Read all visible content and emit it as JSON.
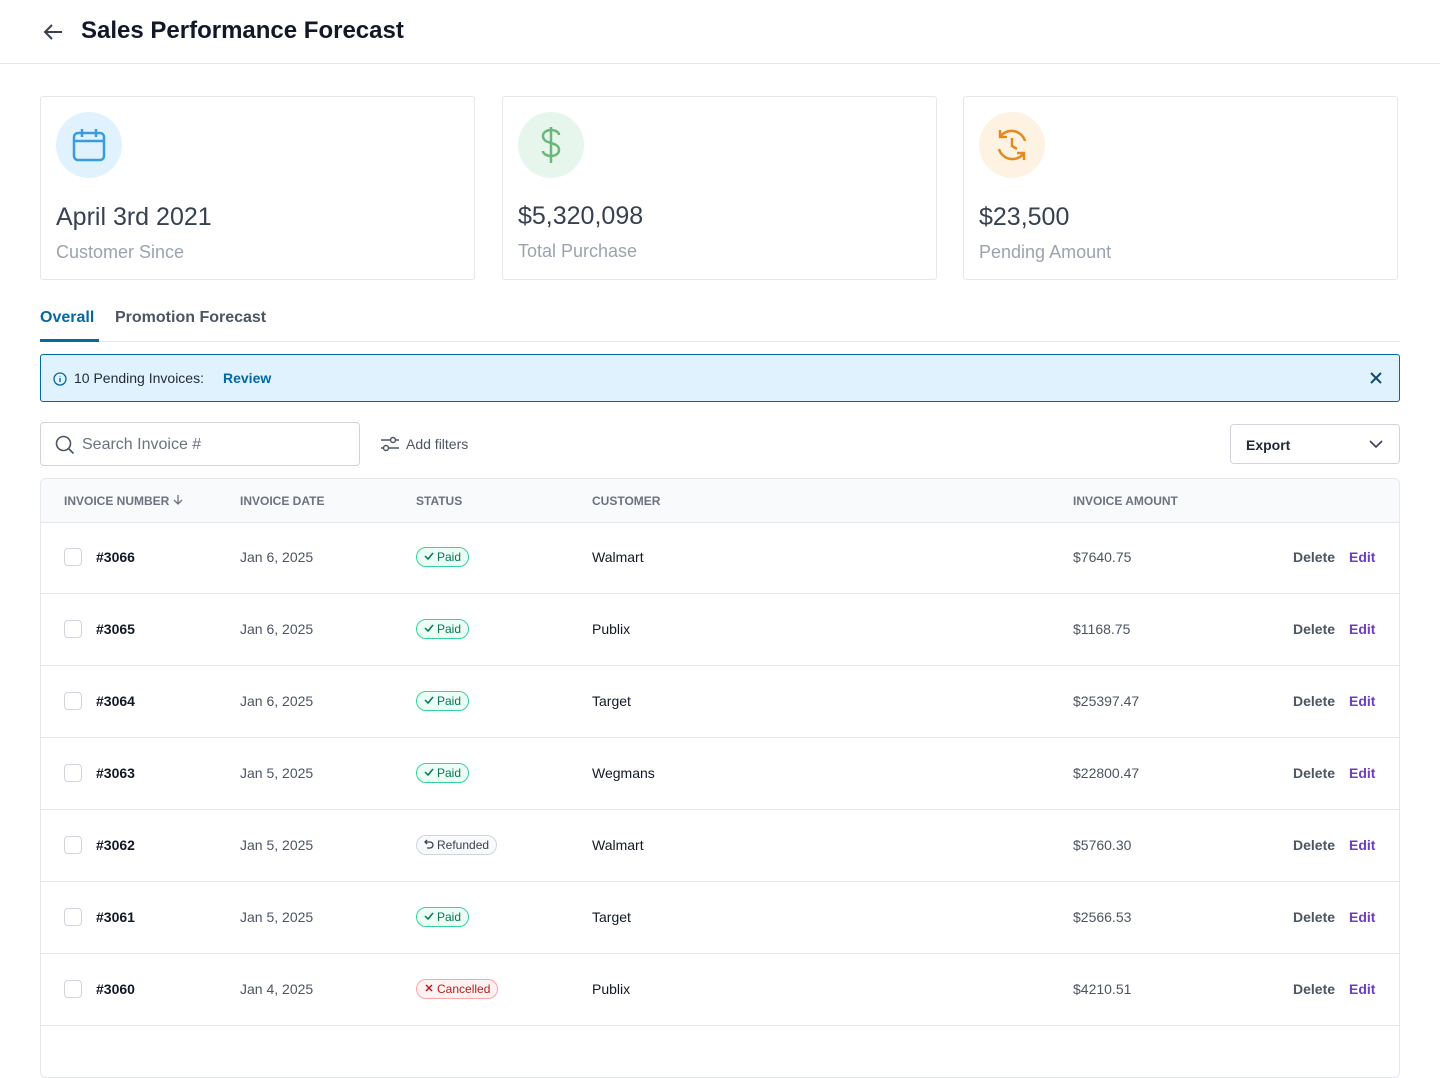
{
  "header": {
    "title": "Sales Performance Forecast"
  },
  "cards": [
    {
      "value": "April 3rd 2021",
      "label": "Customer Since"
    },
    {
      "value": "$5,320,098",
      "label": "Total Purchase"
    },
    {
      "value": "$23,500",
      "label": "Pending Amount"
    }
  ],
  "tabs": [
    "Overall",
    "Promotion Forecast"
  ],
  "banner": {
    "text": "10 Pending Invoices:",
    "link": "Review"
  },
  "toolbar": {
    "search_placeholder": "Search Invoice #",
    "filters": "Add filters",
    "export": "Export"
  },
  "table": {
    "columns": [
      "INVOICE NUMBER",
      "INVOICE DATE",
      "STATUS",
      "CUSTOMER",
      "INVOICE AMOUNT"
    ],
    "actions": [
      "Delete",
      "Edit"
    ],
    "rows": [
      {
        "number": "#3066",
        "date": "Jan 6, 2025",
        "status": "Paid",
        "status_tone": "success",
        "customer": "Walmart",
        "amount": "$7640.75"
      },
      {
        "number": "#3065",
        "date": "Jan 6, 2025",
        "status": "Paid",
        "status_tone": "success",
        "customer": "Publix",
        "amount": "$1168.75"
      },
      {
        "number": "#3064",
        "date": "Jan 6, 2025",
        "status": "Paid",
        "status_tone": "success",
        "customer": "Target",
        "amount": "$25397.47"
      },
      {
        "number": "#3063",
        "date": "Jan 5, 2025",
        "status": "Paid",
        "status_tone": "success",
        "customer": "Wegmans",
        "amount": "$22800.47"
      },
      {
        "number": "#3062",
        "date": "Jan 5, 2025",
        "status": "Refunded",
        "status_tone": "neutral",
        "customer": "Walmart",
        "amount": "$5760.30"
      },
      {
        "number": "#3061",
        "date": "Jan 5, 2025",
        "status": "Paid",
        "status_tone": "success",
        "customer": "Target",
        "amount": "$2566.53"
      },
      {
        "number": "#3060",
        "date": "Jan 4, 2025",
        "status": "Cancelled",
        "status_tone": "danger",
        "customer": "Publix",
        "amount": "$4210.51"
      }
    ]
  }
}
